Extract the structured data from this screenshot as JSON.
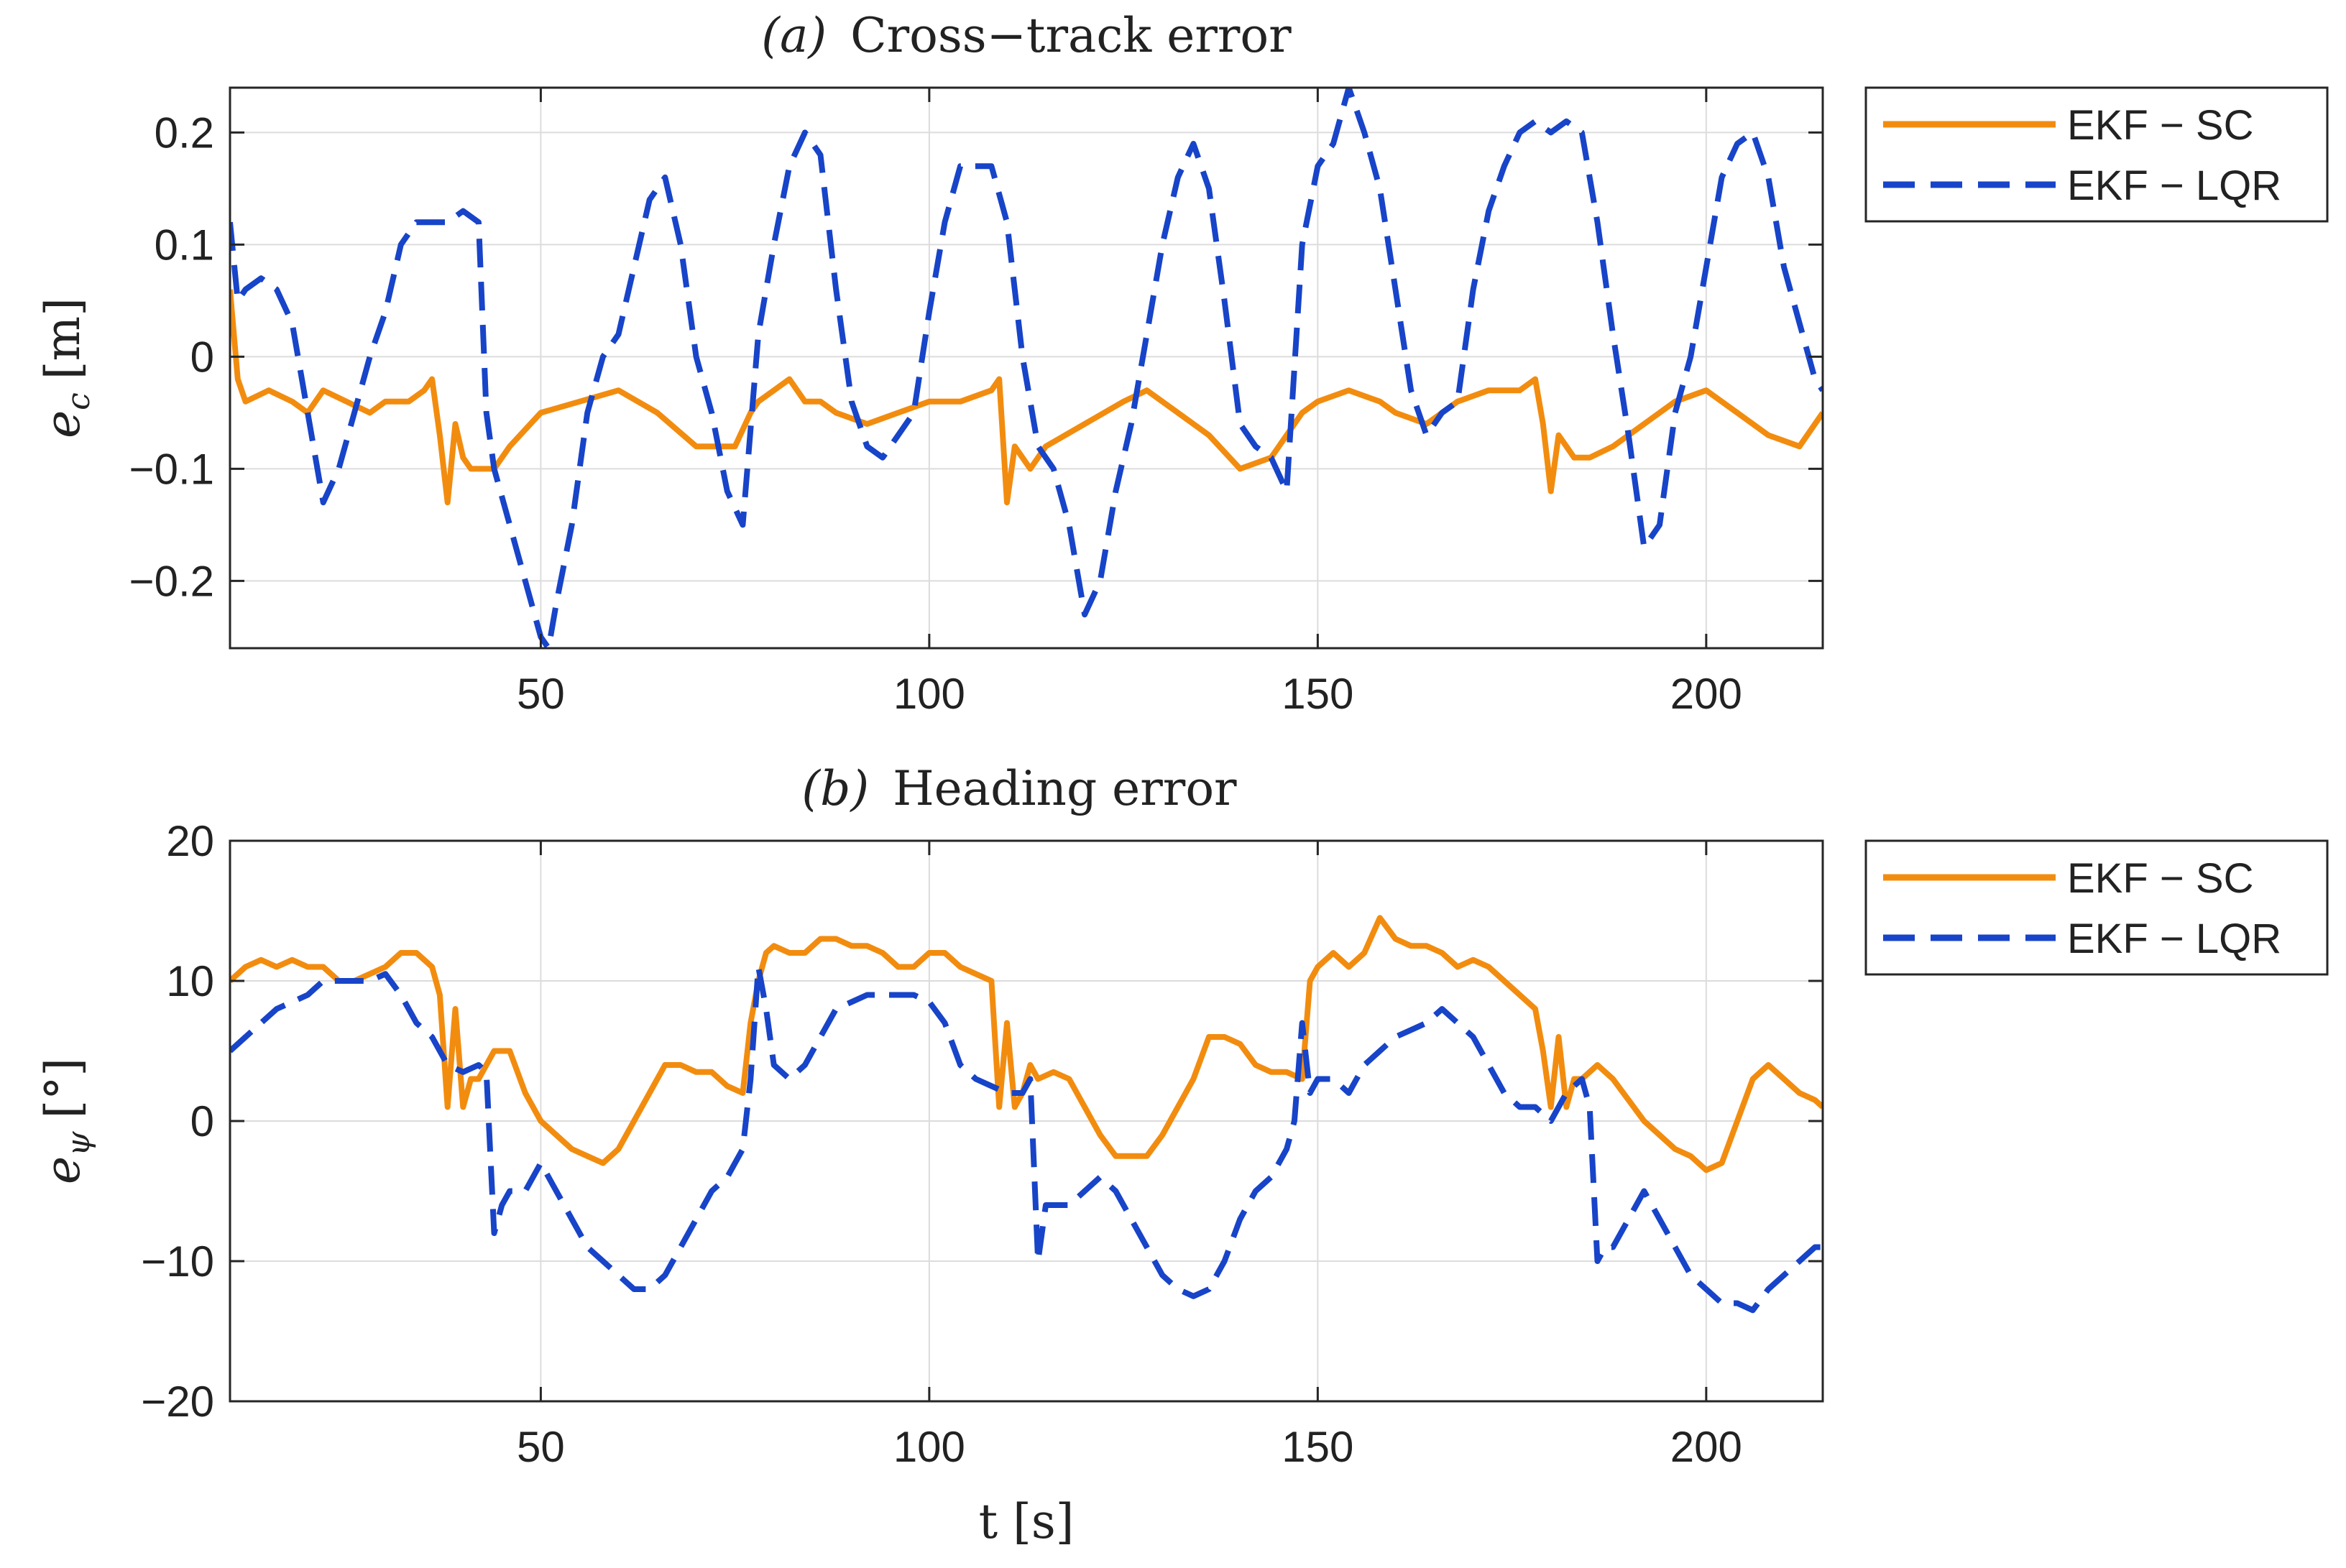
{
  "chart_data": [
    {
      "type": "line",
      "id": "a",
      "title_prefix": "(a)",
      "title": "Cross−track error",
      "xlabel": "",
      "ylabel_main": "e",
      "ylabel_sub": "c",
      "ylabel_unit": "[m]",
      "xlim": [
        10,
        215
      ],
      "ylim": [
        -0.26,
        0.24
      ],
      "xticks": [
        50,
        100,
        150,
        200
      ],
      "xtick_labels": [
        "50",
        "100",
        "150",
        "200"
      ],
      "yticks": [
        0.2,
        0.1,
        0,
        -0.1,
        -0.2
      ],
      "ytick_labels": [
        "0.2",
        "0.1",
        "0",
        "−0.1",
        "−0.2"
      ],
      "grid": true,
      "legend_position": "outside-top-right",
      "series": [
        {
          "name": "EKF − SC",
          "color": "#F28C0F",
          "style": "solid",
          "x": [
            10,
            11,
            12,
            15,
            18,
            20,
            22,
            25,
            28,
            30,
            33,
            35,
            36,
            37,
            38,
            39,
            40,
            41,
            42,
            44,
            46,
            50,
            55,
            60,
            65,
            70,
            75,
            77,
            78,
            80,
            82,
            84,
            86,
            88,
            92,
            96,
            100,
            104,
            108,
            109,
            110,
            111,
            112,
            113,
            115,
            120,
            125,
            128,
            132,
            136,
            140,
            144,
            146,
            148,
            150,
            154,
            158,
            160,
            164,
            168,
            172,
            176,
            178,
            179,
            180,
            181,
            182,
            183,
            185,
            188,
            192,
            196,
            200,
            204,
            208,
            212,
            215
          ],
          "y": [
            0.06,
            -0.02,
            -0.04,
            -0.03,
            -0.04,
            -0.05,
            -0.03,
            -0.04,
            -0.05,
            -0.04,
            -0.04,
            -0.03,
            -0.02,
            -0.07,
            -0.13,
            -0.06,
            -0.09,
            -0.1,
            -0.1,
            -0.1,
            -0.08,
            -0.05,
            -0.04,
            -0.03,
            -0.05,
            -0.08,
            -0.08,
            -0.05,
            -0.04,
            -0.03,
            -0.02,
            -0.04,
            -0.04,
            -0.05,
            -0.06,
            -0.05,
            -0.04,
            -0.04,
            -0.03,
            -0.02,
            -0.13,
            -0.08,
            -0.09,
            -0.1,
            -0.08,
            -0.06,
            -0.04,
            -0.03,
            -0.05,
            -0.07,
            -0.1,
            -0.09,
            -0.07,
            -0.05,
            -0.04,
            -0.03,
            -0.04,
            -0.05,
            -0.06,
            -0.04,
            -0.03,
            -0.03,
            -0.02,
            -0.06,
            -0.12,
            -0.07,
            -0.08,
            -0.09,
            -0.09,
            -0.08,
            -0.06,
            -0.04,
            -0.03,
            -0.05,
            -0.07,
            -0.08,
            -0.05
          ]
        },
        {
          "name": "EKF − LQR",
          "color": "#1744C8",
          "style": "dashed",
          "x": [
            10,
            11,
            12,
            14,
            16,
            18,
            20,
            22,
            24,
            26,
            28,
            30,
            32,
            34,
            36,
            38,
            40,
            42,
            43,
            44,
            46,
            48,
            50,
            51,
            52,
            54,
            56,
            58,
            60,
            62,
            64,
            66,
            68,
            70,
            72,
            74,
            76,
            78,
            80,
            82,
            84,
            86,
            88,
            90,
            92,
            94,
            96,
            98,
            100,
            102,
            104,
            106,
            108,
            110,
            112,
            114,
            116,
            118,
            120,
            122,
            124,
            126,
            128,
            130,
            132,
            134,
            136,
            138,
            140,
            142,
            144,
            146,
            148,
            150,
            152,
            154,
            156,
            158,
            160,
            162,
            164,
            166,
            168,
            170,
            172,
            174,
            176,
            178,
            180,
            182,
            184,
            186,
            188,
            190,
            192,
            194,
            196,
            198,
            200,
            202,
            204,
            206,
            208,
            210,
            212,
            214,
            215
          ],
          "y": [
            0.12,
            0.05,
            0.06,
            0.07,
            0.06,
            0.03,
            -0.05,
            -0.13,
            -0.1,
            -0.05,
            0.0,
            0.04,
            0.1,
            0.12,
            0.12,
            0.12,
            0.13,
            0.12,
            -0.05,
            -0.1,
            -0.15,
            -0.2,
            -0.25,
            -0.26,
            -0.22,
            -0.15,
            -0.05,
            0.0,
            0.02,
            0.08,
            0.14,
            0.16,
            0.1,
            0.0,
            -0.05,
            -0.12,
            -0.15,
            0.02,
            0.1,
            0.17,
            0.2,
            0.18,
            0.06,
            -0.04,
            -0.08,
            -0.09,
            -0.07,
            -0.05,
            0.04,
            0.12,
            0.17,
            0.17,
            0.17,
            0.12,
            0.0,
            -0.08,
            -0.1,
            -0.15,
            -0.23,
            -0.2,
            -0.12,
            -0.06,
            0.02,
            0.1,
            0.16,
            0.19,
            0.15,
            0.05,
            -0.06,
            -0.08,
            -0.09,
            -0.12,
            0.1,
            0.17,
            0.19,
            0.24,
            0.2,
            0.15,
            0.06,
            -0.03,
            -0.07,
            -0.05,
            -0.04,
            0.06,
            0.13,
            0.17,
            0.2,
            0.21,
            0.2,
            0.21,
            0.2,
            0.12,
            0.02,
            -0.07,
            -0.17,
            -0.15,
            -0.05,
            0.0,
            0.08,
            0.16,
            0.19,
            0.2,
            0.16,
            0.08,
            0.03,
            -0.02,
            -0.03
          ]
        }
      ]
    },
    {
      "type": "line",
      "id": "b",
      "title_prefix": "(b)",
      "title": "Heading error",
      "xlabel": "t [s]",
      "ylabel_main": "e",
      "ylabel_sub": "ψ",
      "ylabel_unit": "[°]",
      "xlim": [
        10,
        215
      ],
      "ylim": [
        -20,
        20
      ],
      "xticks": [
        50,
        100,
        150,
        200
      ],
      "xtick_labels": [
        "50",
        "100",
        "150",
        "200"
      ],
      "yticks": [
        20,
        10,
        0,
        -10,
        -20
      ],
      "ytick_labels": [
        "20",
        "10",
        "0",
        "−10",
        "−20"
      ],
      "grid": true,
      "legend_position": "outside-top-right",
      "series": [
        {
          "name": "EKF − SC",
          "color": "#F28C0F",
          "style": "solid",
          "x": [
            10,
            12,
            14,
            16,
            18,
            20,
            22,
            24,
            26,
            28,
            30,
            32,
            34,
            36,
            37,
            38,
            39,
            40,
            41,
            42,
            44,
            46,
            48,
            50,
            52,
            54,
            56,
            58,
            60,
            62,
            64,
            66,
            68,
            70,
            72,
            74,
            76,
            77,
            78,
            79,
            80,
            82,
            84,
            86,
            88,
            90,
            92,
            94,
            96,
            98,
            100,
            102,
            104,
            106,
            108,
            109,
            110,
            111,
            112,
            113,
            114,
            116,
            118,
            120,
            122,
            124,
            126,
            128,
            130,
            132,
            134,
            136,
            138,
            140,
            142,
            144,
            146,
            148,
            149,
            150,
            152,
            154,
            156,
            158,
            160,
            162,
            164,
            166,
            168,
            170,
            172,
            174,
            176,
            178,
            179,
            180,
            181,
            182,
            183,
            184,
            186,
            188,
            190,
            192,
            194,
            196,
            198,
            200,
            202,
            204,
            206,
            208,
            210,
            212,
            214,
            215
          ],
          "y": [
            10,
            11,
            11.5,
            11,
            11.5,
            11,
            11,
            10,
            10,
            10.5,
            11,
            12,
            12,
            11,
            9,
            1,
            8,
            1,
            3,
            3,
            5,
            5,
            2,
            0,
            -1,
            -2,
            -2.5,
            -3,
            -2,
            0,
            2,
            4,
            4,
            3.5,
            3.5,
            2.5,
            2,
            7,
            10,
            12,
            12.5,
            12,
            12,
            13,
            13,
            12.5,
            12.5,
            12,
            11,
            11,
            12,
            12,
            11,
            10.5,
            10,
            1,
            7,
            1,
            2,
            4,
            3,
            3.5,
            3,
            1,
            -1,
            -2.5,
            -2.5,
            -2.5,
            -1,
            1,
            3,
            6,
            6,
            5.5,
            4,
            3.5,
            3.5,
            3,
            10,
            11,
            12,
            11,
            12,
            14.5,
            13,
            12.5,
            12.5,
            12,
            11,
            11.5,
            11,
            10,
            9,
            8,
            5,
            1,
            6,
            1,
            3,
            3,
            4,
            3,
            1.5,
            0,
            -1,
            -2,
            -2.5,
            -3.5,
            -3,
            0,
            3,
            4,
            3,
            2,
            1.5,
            1
          ]
        },
        {
          "name": "EKF − LQR",
          "color": "#1744C8",
          "style": "dashed",
          "x": [
            10,
            12,
            14,
            16,
            18,
            20,
            22,
            24,
            26,
            28,
            30,
            32,
            34,
            36,
            38,
            40,
            42,
            43,
            44,
            45,
            46,
            48,
            50,
            52,
            54,
            56,
            58,
            60,
            62,
            64,
            66,
            68,
            70,
            72,
            74,
            76,
            77,
            78,
            79,
            80,
            82,
            84,
            86,
            88,
            90,
            92,
            94,
            96,
            98,
            100,
            102,
            104,
            106,
            108,
            110,
            112,
            113,
            114,
            115,
            116,
            118,
            120,
            122,
            124,
            126,
            128,
            130,
            132,
            134,
            136,
            138,
            140,
            142,
            144,
            146,
            147,
            148,
            149,
            150,
            152,
            154,
            156,
            158,
            160,
            162,
            164,
            166,
            168,
            170,
            172,
            174,
            176,
            178,
            180,
            182,
            184,
            185,
            186,
            187,
            188,
            190,
            192,
            194,
            196,
            198,
            200,
            202,
            204,
            206,
            208,
            210,
            212,
            214,
            215
          ],
          "y": [
            5,
            6,
            7,
            8,
            8.5,
            9,
            10,
            10,
            10,
            10,
            10.5,
            9,
            7,
            6,
            4,
            3.5,
            4,
            3.5,
            -8,
            -6,
            -5,
            -5,
            -3,
            -5,
            -7,
            -9,
            -10,
            -11,
            -12,
            -12,
            -11,
            -9,
            -7,
            -5,
            -4,
            -2,
            3,
            11,
            8,
            4,
            3,
            4,
            6,
            8,
            8.5,
            9,
            9,
            9,
            9,
            8.5,
            7,
            4,
            3,
            2.5,
            2,
            2,
            3,
            -10,
            -6,
            -6,
            -6,
            -5,
            -4,
            -5,
            -7,
            -9,
            -11,
            -12,
            -12.5,
            -12,
            -10,
            -7,
            -5,
            -4,
            -2,
            0,
            7,
            2,
            3,
            3,
            2,
            4,
            5,
            6,
            6.5,
            7,
            8,
            7,
            6,
            4,
            2,
            1,
            1,
            0,
            2,
            3,
            1,
            -10,
            -9,
            -9,
            -7,
            -5,
            -7,
            -9,
            -11,
            -12,
            -13,
            -13,
            -13.5,
            -12,
            -11,
            -10,
            -9,
            -9
          ]
        }
      ]
    }
  ]
}
